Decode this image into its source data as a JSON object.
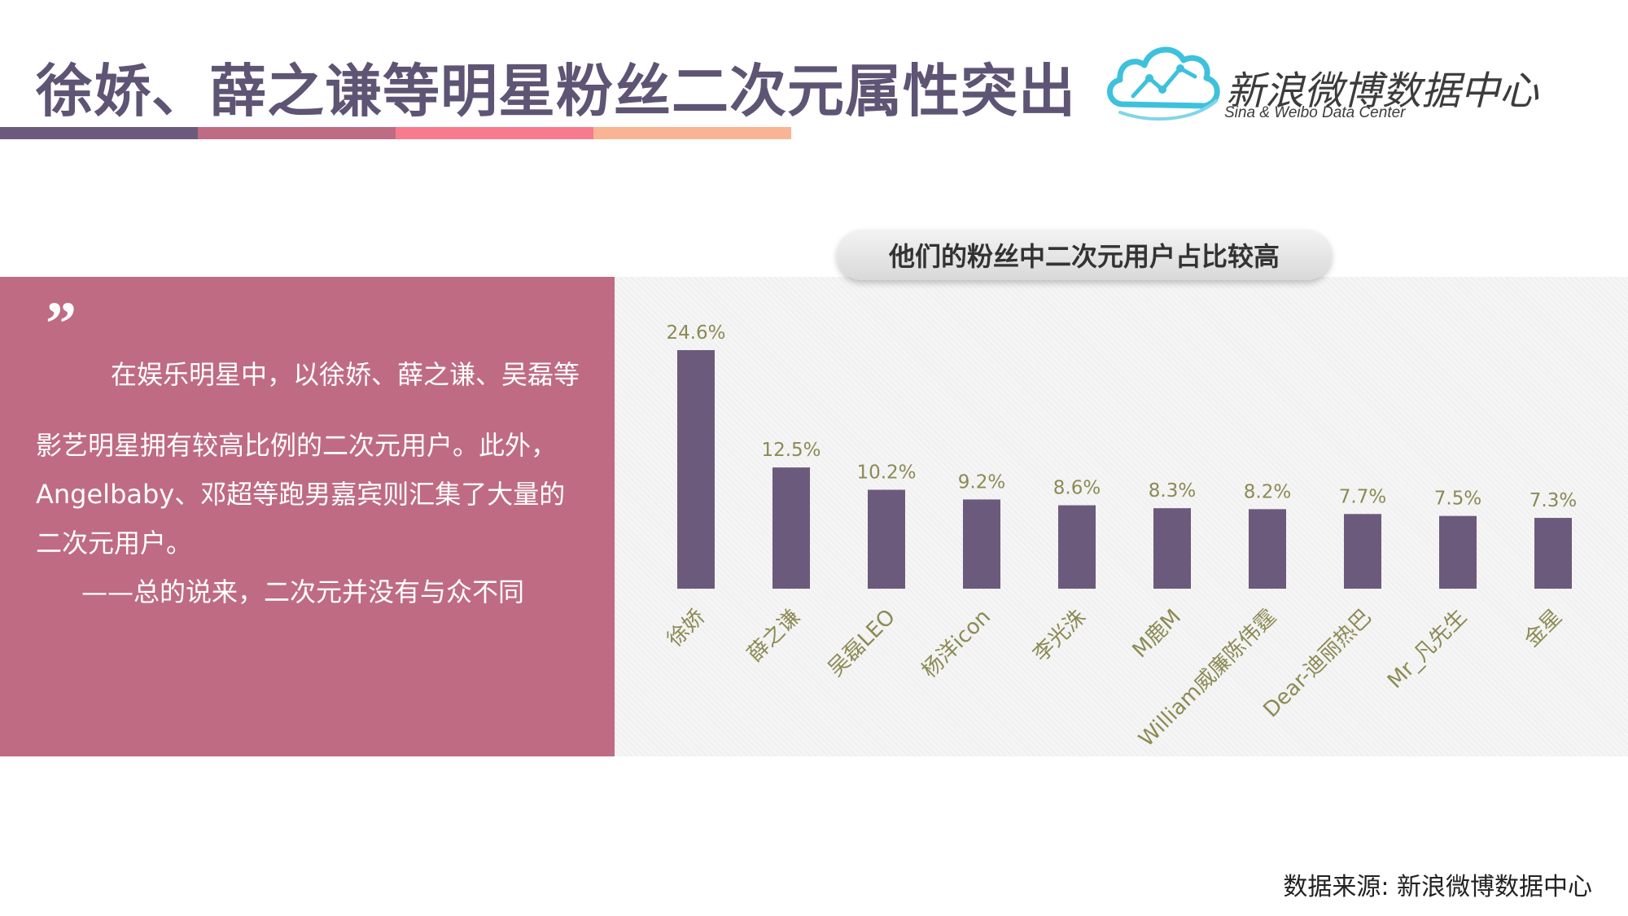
{
  "header": {
    "title": "徐娇、薛之谦等明星粉丝二次元属性突出",
    "stripe_colors": [
      "#6c5a7c",
      "#bf6b84",
      "#f77b8d",
      "#f9b493"
    ]
  },
  "logo": {
    "name_cn": "新浪微博数据中心",
    "name_en": "Sina & Weibo Data Center",
    "brand_color": "#3ec1dc"
  },
  "quote": {
    "mark": "”",
    "lines": [
      "在娱乐明星中，以徐娇、薛之谦、吴磊等",
      "影艺明星拥有较高比例的二次元用户。此外，",
      "Angelbaby、邓超等跑男嘉宾则汇集了大量的",
      "二次元用户。",
      "——总的说来，二次元并没有与众不同"
    ],
    "panel_color": "#bf6b84"
  },
  "chart_data": {
    "type": "bar",
    "title": "他们的粉丝中二次元用户占比较高",
    "categories": [
      "徐娇",
      "薛之谦",
      "吴磊LEO",
      "杨洋icon",
      "李光洙",
      "M鹿M",
      "William威廉陈伟霆",
      "Dear-迪丽热巴",
      "Mr_凡先生",
      "金星"
    ],
    "values": [
      24.6,
      12.5,
      10.2,
      9.2,
      8.6,
      8.3,
      8.2,
      7.7,
      7.5,
      7.3
    ],
    "value_labels": [
      "24.6%",
      "12.5%",
      "10.2%",
      "9.2%",
      "8.6%",
      "8.3%",
      "8.2%",
      "7.7%",
      "7.5%",
      "7.3%"
    ],
    "unit": "%",
    "xlabel": "",
    "ylabel": "",
    "ylim": [
      0,
      24.6
    ],
    "bar_color": "#6c5a7c",
    "label_color": "#8c8a54",
    "grid": false,
    "legend": "none"
  },
  "footer": {
    "source": "数据来源: 新浪微博数据中心"
  }
}
